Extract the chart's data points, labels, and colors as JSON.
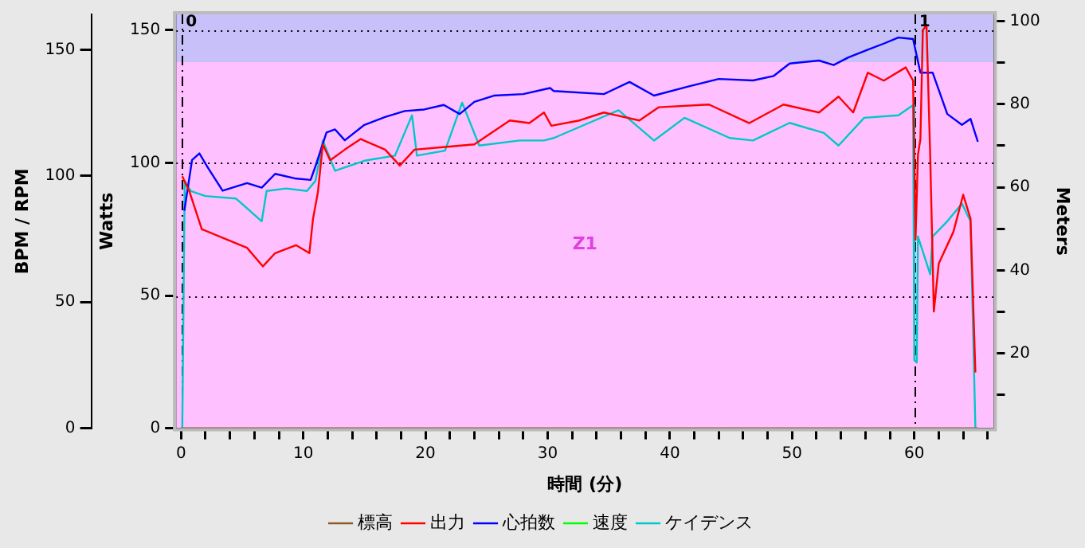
{
  "chart_data": {
    "type": "line",
    "xlabel": "時間 (分)",
    "ylabel": "Watts",
    "y3label": "BPM / RPM",
    "y2label": "Meters",
    "xlim": [
      -0.4,
      66.5
    ],
    "xticks": [
      0,
      {
        "value": 2,
        "label": null
      },
      {
        "value": 4,
        "label": null
      },
      {
        "value": 6,
        "label": null
      },
      {
        "value": 8,
        "label": null
      },
      10,
      {
        "value": 12,
        "label": null
      },
      {
        "value": 14,
        "label": null
      },
      {
        "value": 16,
        "label": null
      },
      {
        "value": 18,
        "label": null
      },
      20,
      {
        "value": 22,
        "label": null
      },
      {
        "value": 24,
        "label": null
      },
      {
        "value": 26,
        "label": null
      },
      {
        "value": 28,
        "label": null
      },
      30,
      {
        "value": 32,
        "label": null
      },
      {
        "value": 34,
        "label": null
      },
      {
        "value": 36,
        "label": null
      },
      {
        "value": 38,
        "label": null
      },
      40,
      {
        "value": 42,
        "label": null
      },
      {
        "value": 44,
        "label": null
      },
      {
        "value": 46,
        "label": null
      },
      {
        "value": 48,
        "label": null
      },
      50,
      {
        "value": 52,
        "label": null
      },
      {
        "value": 54,
        "label": null
      },
      {
        "value": 56,
        "label": null
      },
      {
        "value": 58,
        "label": null
      },
      60,
      {
        "value": 62,
        "label": null
      },
      {
        "value": 64,
        "label": null
      },
      {
        "value": 66,
        "label": null
      }
    ],
    "ylim": [
      0,
      156
    ],
    "yticks": [
      0,
      50,
      100,
      150
    ],
    "y3lim": [
      0,
      164
    ],
    "y3ticks": [
      0,
      50,
      100,
      150
    ],
    "y2lim": [
      2,
      101.6
    ],
    "y2ticks": [
      {
        "value": 10,
        "label": null
      },
      20,
      {
        "value": 30,
        "label": null
      },
      40,
      {
        "value": 50,
        "label": null
      },
      60,
      {
        "value": 70,
        "label": null
      },
      80,
      {
        "value": 90,
        "label": null
      },
      100
    ],
    "grid": "y",
    "legend": "bottom",
    "marker": "none",
    "line_style": "solid",
    "bands": [
      {
        "axis": "y",
        "from": 138,
        "to": 156,
        "color": "#c8c0f8",
        "label": null
      },
      {
        "axis": "y",
        "from": 0,
        "to": 138,
        "color": "#ffc0ff",
        "label": "Z1"
      }
    ],
    "ref_lines": [
      {
        "axis": "x",
        "value": 0,
        "line_style": "dashed"
      },
      {
        "axis": "x",
        "value": 60,
        "line_style": "dashed"
      }
    ],
    "annotations": [
      {
        "text": "0",
        "x": 0,
        "y": 153
      },
      {
        "text": "1",
        "x": 60,
        "y": 153
      }
    ],
    "series": [
      {
        "name": "標高",
        "color": "#8b5a2b",
        "axis": "y2",
        "x": [
          0,
          65.2
        ],
        "values": [
          2,
          2
        ]
      },
      {
        "name": "出力",
        "color": "#ff0000",
        "x": [
          0.1,
          0.7,
          1.7,
          3.3,
          5.4,
          6.7,
          7.7,
          9.4,
          10.5,
          10.8,
          11.2,
          11.6,
          12.2,
          13.4,
          14.7,
          16.7,
          17.9,
          19.1,
          21.6,
          24,
          26.9,
          28.5,
          29.7,
          30.3,
          32.6,
          34.6,
          37.5,
          39.1,
          43.2,
          46.5,
          49.3,
          52.2,
          53.8,
          55,
          56.2,
          57.5,
          59.3,
          59.9,
          60.1,
          60.3,
          60.5,
          60.7,
          61,
          61.3,
          61.6,
          62,
          63.2,
          64,
          64.6,
          65
        ],
        "values": [
          95,
          89,
          75,
          72,
          68,
          61,
          66,
          69,
          66,
          79,
          89,
          107,
          101,
          105,
          109,
          105,
          99,
          105,
          106,
          107,
          116,
          115,
          119,
          114,
          116,
          119,
          116,
          121,
          122,
          115,
          122,
          119,
          125,
          119,
          134,
          131,
          136,
          131,
          71,
          103,
          109,
          150,
          152,
          103,
          44,
          62,
          74,
          88,
          79,
          21
        ]
      },
      {
        "name": "心拍数",
        "color": "#0000ff",
        "axis": "y3",
        "x": [
          0.27,
          0.9,
          1.5,
          2.2,
          3.4,
          5.4,
          6.6,
          7.7,
          9.3,
          10.6,
          11,
          11.9,
          12.6,
          13.4,
          15,
          16.7,
          18.3,
          19.9,
          21.5,
          22.8,
          24,
          25.6,
          28,
          30.2,
          30.5,
          34.6,
          36.7,
          38.7,
          41.5,
          44,
          46.8,
          48.5,
          49.8,
          52.2,
          53.4,
          54.6,
          56.2,
          57.5,
          58.7,
          59.9,
          60.5,
          61.5,
          62.7,
          63.9,
          64.6,
          65.2
        ],
        "values": [
          86.2,
          106.3,
          108.9,
          103.2,
          94.1,
          97.1,
          95.3,
          100.8,
          99,
          98.4,
          103.8,
          117.2,
          118.4,
          114.1,
          120.2,
          123.3,
          125.7,
          126.3,
          128.1,
          124.5,
          129.3,
          131.8,
          132.4,
          134.8,
          133.6,
          132.4,
          137.2,
          131.8,
          135.4,
          138.4,
          137.8,
          139.6,
          144.5,
          145.7,
          143.9,
          146.9,
          150,
          152.4,
          154.8,
          154.2,
          140.9,
          140.9,
          124.5,
          120.2,
          122.6,
          113.5
        ]
      },
      {
        "name": "速度",
        "color": "#00ff00",
        "axis": "y3"
      },
      {
        "name": "ケイデンス",
        "color": "#00c8c8",
        "axis": "y3",
        "x": [
          0.1,
          0.3,
          0.8,
          2,
          4.5,
          6.6,
          7,
          8.6,
          10.3,
          11,
          11.6,
          12.6,
          15,
          17.5,
          18.9,
          19.3,
          21.6,
          23,
          24.4,
          27.7,
          29.7,
          30.5,
          35.8,
          38.7,
          41.2,
          44.9,
          46.8,
          49.8,
          52.6,
          53.8,
          55.9,
          58.7,
          59.9,
          60,
          60.2,
          60.3,
          60.7,
          61.3,
          61.5,
          62.7,
          63.9,
          64.6,
          65
        ],
        "values": [
          0,
          98,
          94,
          92,
          91,
          82,
          94,
          95,
          94,
          98,
          114,
          102,
          106,
          108,
          124,
          108,
          110,
          129,
          112,
          114,
          114,
          115,
          126,
          114,
          123,
          115,
          114,
          121,
          117,
          112,
          123,
          124,
          128,
          27,
          26,
          76,
          70,
          61,
          76,
          82,
          89,
          82,
          0
        ]
      }
    ]
  }
}
